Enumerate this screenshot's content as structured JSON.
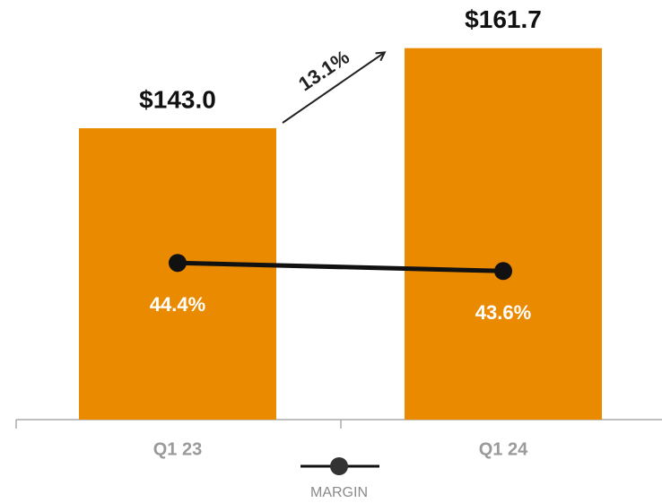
{
  "chart_data": {
    "type": "bar_line",
    "categories": [
      "Q1 23",
      "Q1 24"
    ],
    "series": [
      {
        "type": "bar",
        "color": "#ea8a00",
        "values": [
          143.0,
          161.7
        ],
        "value_labels": [
          "$143.0",
          "$161.7"
        ]
      },
      {
        "type": "line",
        "name": "MARGIN",
        "axis": "y2",
        "color": "#111111",
        "values": [
          44.4,
          43.6
        ],
        "value_labels": [
          "44.4%",
          "43.6%"
        ]
      }
    ],
    "ylim": [
      75,
      170
    ],
    "y2lim": [
      29,
      69
    ],
    "annotations": [
      "13.1%"
    ]
  }
}
